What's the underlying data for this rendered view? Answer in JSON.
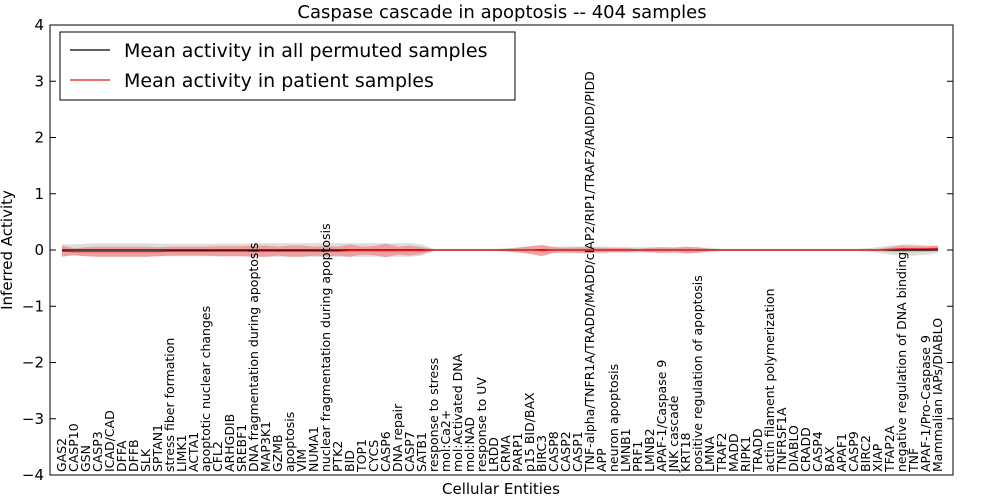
{
  "chart_data": {
    "type": "line",
    "title": "Caspase cascade in apoptosis -- 404 samples",
    "xlabel": "Cellular Entities",
    "ylabel": "Inferred Activity",
    "ylim": [
      -4,
      4
    ],
    "yticks": [
      -4,
      -3,
      -2,
      -1,
      0,
      1,
      2,
      3,
      4
    ],
    "yticklabels": [
      "−4",
      "−3",
      "−2",
      "−1",
      "0",
      "1",
      "2",
      "3",
      "4"
    ],
    "legend_position": "top-left",
    "colors": {
      "permuted_line": "#000000",
      "patient_line": "#e41a1c",
      "patient_band": "#f28b8c",
      "permuted_band": "#c8c8c8"
    },
    "categories": [
      "GAS2",
      "CASP10",
      "GSN",
      "CASP3",
      "ICAD/CAD",
      "DFFA",
      "DFFB",
      "SLK",
      "SPTAN1",
      "stress fiber formation",
      "LIMK1",
      "ACTA1",
      "apoptotic nuclear changes",
      "CFL2",
      "ARHGDIB",
      "SREBF1",
      "DNA fragmentation during apoptosis",
      "MAP3K1",
      "GZMB",
      "apoptosis",
      "VIM",
      "NUMA1",
      "nuclear fragmentation during apoptosis",
      "PTK2",
      "BID",
      "TOP1",
      "CYCS",
      "CASP6",
      "DNA repair",
      "CASP7",
      "SATB1",
      "response to stress",
      "mol:Ca2+",
      "mol:Activated DNA",
      "mol:NAD",
      "response to UV",
      "LRDD",
      "CRMA",
      "PARP1",
      "p15 BID/BAX",
      "BIRC3",
      "CASP8",
      "CASP2",
      "CASP1",
      "TNF-alpha/TNFR1A/TRADD/MADD/cIAP2/RIP1/TRAF2/RAIDD/PIDD",
      "APP",
      "neuron apoptosis",
      "LMNB1",
      "PRF1",
      "LMNB2",
      "APAF-1/Caspase 9",
      "JNK cascade",
      "KRT18",
      "positive regulation of apoptosis",
      "LMNA",
      "TRAF2",
      "MADD",
      "RIPK1",
      "TRADD",
      "actin filament polymerization",
      "TNFRSF1A",
      "DIABLO",
      "CRADD",
      "CASP4",
      "BAX",
      "APAF1",
      "CASP9",
      "BIRC2",
      "XIAP",
      "TFAP2A",
      "negative regulation of DNA binding",
      "TNF",
      "APAF-1/Pro-Caspase 9",
      "Mammalian IAPs/DIABLO"
    ],
    "series": [
      {
        "name": "Mean activity in all permuted samples",
        "values": [
          0,
          0,
          0,
          0,
          0,
          0,
          0,
          0,
          0,
          0,
          0,
          0,
          0,
          0,
          0,
          0,
          0,
          0,
          0,
          0,
          0,
          0,
          0,
          0,
          0,
          0,
          0,
          0,
          0,
          0,
          0,
          0,
          0,
          0,
          0,
          0,
          0,
          0,
          0,
          0,
          0,
          0,
          0,
          0,
          0,
          0,
          0,
          0,
          0,
          0,
          0,
          0,
          0,
          0,
          0,
          0,
          0,
          0,
          0,
          0,
          0,
          0,
          0,
          0,
          0,
          0,
          0,
          0,
          0,
          0,
          0,
          0,
          0,
          0
        ],
        "spread": [
          0.1,
          0.1,
          0.11,
          0.12,
          0.12,
          0.12,
          0.12,
          0.12,
          0.11,
          0.11,
          0.11,
          0.11,
          0.11,
          0.11,
          0.11,
          0.11,
          0.12,
          0.12,
          0.12,
          0.12,
          0.12,
          0.12,
          0.13,
          0.12,
          0.12,
          0.12,
          0.12,
          0.12,
          0.12,
          0.12,
          0.1,
          0.02,
          0.02,
          0.02,
          0.02,
          0.02,
          0.02,
          0.03,
          0.05,
          0.06,
          0.06,
          0.06,
          0.06,
          0.06,
          0.06,
          0.06,
          0.05,
          0.05,
          0.05,
          0.05,
          0.05,
          0.05,
          0.05,
          0.05,
          0.04,
          0.02,
          0.02,
          0.02,
          0.02,
          0.02,
          0.02,
          0.02,
          0.02,
          0.02,
          0.02,
          0.02,
          0.02,
          0.03,
          0.05,
          0.08,
          0.1,
          0.1,
          0.08,
          0.06
        ]
      },
      {
        "name": "Mean activity in patient samples",
        "values": [
          -0.02,
          -0.03,
          -0.03,
          -0.03,
          -0.03,
          -0.03,
          -0.03,
          -0.03,
          -0.03,
          -0.02,
          -0.02,
          -0.02,
          -0.02,
          -0.02,
          -0.02,
          -0.02,
          -0.02,
          -0.02,
          -0.02,
          -0.02,
          -0.02,
          -0.02,
          -0.02,
          -0.02,
          -0.01,
          -0.01,
          -0.01,
          -0.01,
          -0.01,
          -0.01,
          -0.01,
          0,
          0,
          0,
          0,
          0,
          0,
          0,
          0,
          0,
          -0.01,
          0,
          0,
          0,
          0,
          0,
          0,
          0,
          0,
          0,
          0,
          0,
          0,
          0,
          0,
          0,
          0,
          0,
          0,
          0,
          0,
          0,
          0,
          0,
          0,
          0,
          0,
          0,
          0,
          0.01,
          0.02,
          0.02,
          0.02,
          0.03
        ],
        "spread": [
          0.1,
          0.06,
          0.08,
          0.09,
          0.09,
          0.09,
          0.09,
          0.09,
          0.08,
          0.08,
          0.08,
          0.08,
          0.08,
          0.09,
          0.09,
          0.09,
          0.1,
          0.1,
          0.08,
          0.1,
          0.1,
          0.08,
          0.09,
          0.08,
          0.11,
          0.07,
          0.08,
          0.12,
          0.07,
          0.09,
          0.06,
          0.01,
          0.01,
          0.01,
          0.01,
          0.01,
          0.01,
          0.02,
          0.04,
          0.07,
          0.1,
          0.05,
          0.04,
          0.05,
          0.05,
          0.04,
          0.04,
          0.04,
          0.02,
          0.04,
          0.05,
          0.04,
          0.06,
          0.05,
          0.02,
          0.01,
          0.01,
          0.01,
          0.01,
          0.01,
          0.01,
          0.01,
          0.01,
          0.01,
          0.01,
          0.01,
          0.01,
          0.01,
          0.02,
          0.04,
          0.06,
          0.05,
          0.05,
          0.05
        ]
      }
    ]
  }
}
